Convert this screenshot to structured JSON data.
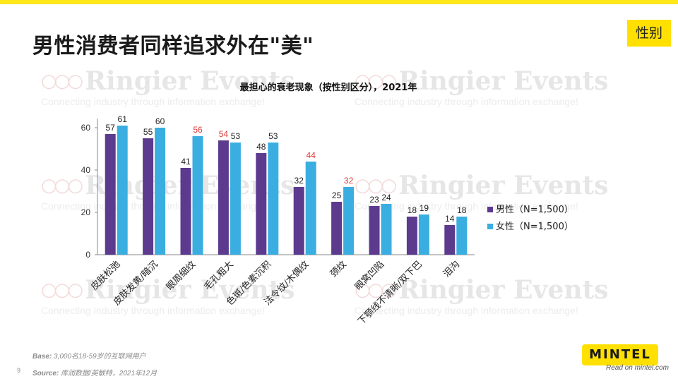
{
  "slide": {
    "title": "男性消费者同样追求外在\"美\"",
    "tag": "性别",
    "page_number": "9",
    "base_label": "Base:",
    "base_text": " 3,000名18-59岁的互联网用户",
    "source_label": "Source:",
    "source_text": " 库润数据/英敏特，2021年12月",
    "logo_text": "MINTEL",
    "read_on": "Read on mintel.com"
  },
  "watermark": {
    "brand": "Ringier Events",
    "tagline": "Connecting industry through information exchange!",
    "circles": "○○○"
  },
  "colors": {
    "male": "#5c3a8e",
    "female": "#3aaee0",
    "highlight": "#e03a3a",
    "accent": "#ffe000"
  },
  "chart_data": {
    "type": "bar",
    "title": "最担心的衰老现象（按性别区分），2021年",
    "categories": [
      "皮肤松弛",
      "皮肤发黄/暗沉",
      "眼周细纹",
      "毛孔粗大",
      "色斑/色素沉积",
      "法令纹/木偶纹",
      "颈纹",
      "眼窝凹陷",
      "下颚线不清晰/双下巴",
      "泪沟"
    ],
    "series": [
      {
        "name": "男性（N=1,500）",
        "values": [
          57,
          55,
          41,
          54,
          48,
          32,
          25,
          23,
          18,
          14
        ]
      },
      {
        "name": "女性（N=1,500）",
        "values": [
          61,
          60,
          56,
          53,
          53,
          44,
          32,
          24,
          19,
          18
        ]
      }
    ],
    "highlighted_labels": {
      "male": [
        false,
        false,
        false,
        true,
        false,
        false,
        false,
        false,
        false,
        false
      ],
      "female": [
        false,
        false,
        true,
        false,
        false,
        true,
        true,
        false,
        false,
        false
      ]
    },
    "yticks": [
      0,
      20,
      40,
      60
    ],
    "ylim": [
      0,
      65
    ],
    "legend_position": "right",
    "grid": false
  }
}
